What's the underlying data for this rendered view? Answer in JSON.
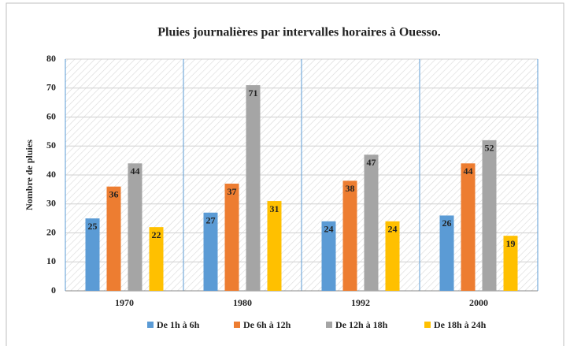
{
  "chart_data": {
    "type": "bar",
    "title": "Pluies journalières par intervalles horaires à Ouesso.",
    "y_label": "Nombre de pluies",
    "categories": [
      "1970",
      "1980",
      "1992",
      "2000"
    ],
    "series": [
      {
        "name": "De 1h à 6h",
        "color": "#5b9bd5",
        "values": [
          25,
          27,
          24,
          26
        ]
      },
      {
        "name": "De 6h à 12h",
        "color": "#ed7d31",
        "values": [
          36,
          37,
          38,
          44
        ]
      },
      {
        "name": "De 12h à 18h",
        "color": "#a5a5a5",
        "values": [
          44,
          71,
          47,
          52
        ]
      },
      {
        "name": "De 18h à 24h",
        "color": "#ffc000",
        "values": [
          22,
          31,
          24,
          19
        ]
      }
    ],
    "ylim": [
      0,
      80
    ],
    "yticks": [
      0,
      10,
      20,
      30,
      40,
      50,
      60,
      70,
      80
    ],
    "grid": true,
    "legend": "bottom"
  }
}
